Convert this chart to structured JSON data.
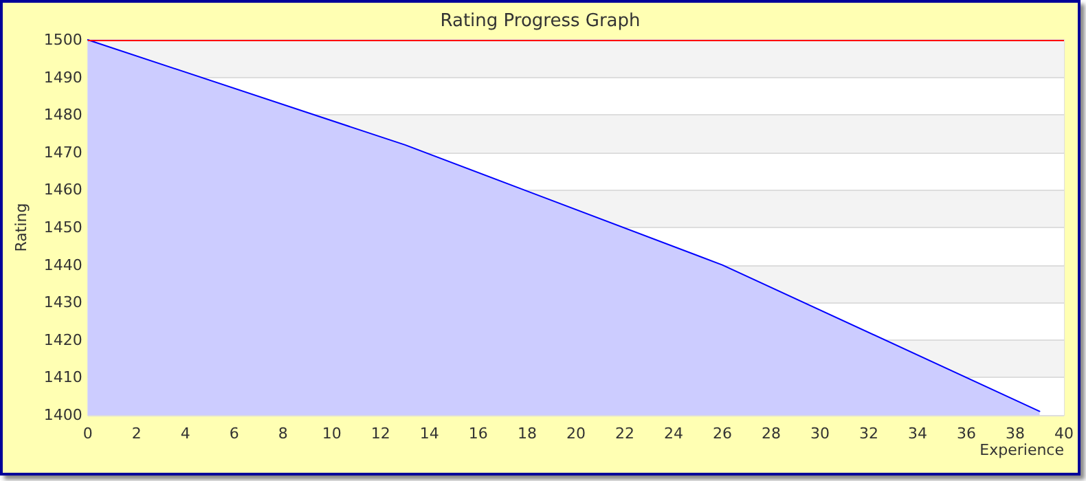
{
  "chart_data": {
    "type": "area",
    "title": "Rating Progress Graph",
    "xlabel": "Experience",
    "ylabel": "Rating",
    "x": [
      0,
      13,
      26,
      39
    ],
    "series": [
      {
        "color": "#0000ff",
        "values": [
          1500,
          1472,
          1440,
          1401
        ]
      }
    ],
    "xlim": [
      0,
      40
    ],
    "xticks": [
      0,
      2,
      4,
      6,
      8,
      10,
      12,
      14,
      16,
      18,
      20,
      22,
      24,
      26,
      28,
      30,
      32,
      34,
      36,
      38,
      40
    ],
    "ylim": [
      1400,
      1500
    ],
    "yticks": [
      1400,
      1410,
      1420,
      1430,
      1440,
      1450,
      1460,
      1470,
      1480,
      1490,
      1500
    ],
    "grid": "y",
    "marker": "none",
    "line_style": "solid",
    "ref_lines": [
      {
        "axis": "y",
        "value": 1500,
        "color": "#ff0000"
      }
    ]
  }
}
